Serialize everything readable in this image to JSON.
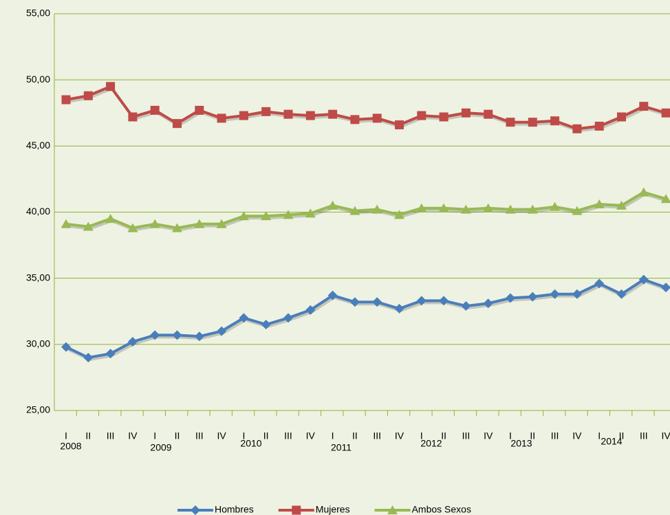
{
  "chart_data": {
    "type": "line",
    "categories": [
      "I",
      "II",
      "III",
      "IV",
      "I",
      "II",
      "III",
      "IV",
      "I",
      "II",
      "III",
      "IV",
      "I",
      "II",
      "III",
      "IV",
      "I",
      "II",
      "III",
      "IV",
      "I",
      "II",
      "III",
      "IV",
      "I",
      "II",
      "III",
      "IV"
    ],
    "year_labels": [
      "2008",
      "2009",
      "2010",
      "2011",
      "2012",
      "2013",
      "2014"
    ],
    "series": [
      {
        "name": "Hombres",
        "color": "#4a7ebb",
        "marker": "diamond",
        "values": [
          29.8,
          29.0,
          29.3,
          30.2,
          30.7,
          30.7,
          30.6,
          31.0,
          32.0,
          31.5,
          32.0,
          32.6,
          33.7,
          33.2,
          33.2,
          32.7,
          33.3,
          33.3,
          32.9,
          33.1,
          33.5,
          33.6,
          33.8,
          33.8,
          34.6,
          33.8,
          34.9,
          34.3
        ]
      },
      {
        "name": "Mujeres",
        "color": "#be4b48",
        "marker": "square",
        "values": [
          48.5,
          48.8,
          49.5,
          47.2,
          47.7,
          46.7,
          47.7,
          47.1,
          47.3,
          47.6,
          47.4,
          47.3,
          47.4,
          47.0,
          47.1,
          46.6,
          47.3,
          47.2,
          47.5,
          47.4,
          46.8,
          46.8,
          46.9,
          46.3,
          46.5,
          47.2,
          48.0,
          47.5
        ]
      },
      {
        "name": "Ambos Sexos",
        "color": "#98b954",
        "marker": "triangle",
        "values": [
          39.1,
          38.9,
          39.5,
          38.8,
          39.1,
          38.8,
          39.1,
          39.1,
          39.7,
          39.7,
          39.8,
          39.9,
          40.5,
          40.1,
          40.2,
          39.8,
          40.3,
          40.3,
          40.2,
          40.3,
          40.2,
          40.2,
          40.4,
          40.1,
          40.6,
          40.5,
          41.5,
          41.0
        ]
      }
    ],
    "ylim": [
      25,
      55
    ],
    "yticks": [
      {
        "value": 25,
        "label": "25,00"
      },
      {
        "value": 30,
        "label": "30,00"
      },
      {
        "value": 35,
        "label": "35,00"
      },
      {
        "value": 40,
        "label": "40,00"
      },
      {
        "value": 45,
        "label": "45,00"
      },
      {
        "value": 50,
        "label": "50,00"
      },
      {
        "value": 55,
        "label": "55,00"
      }
    ],
    "grid": true,
    "grid_color": "#8db33a",
    "legend": "bottom"
  }
}
